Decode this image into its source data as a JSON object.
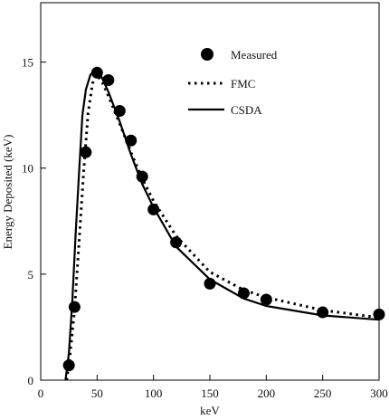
{
  "chart_data": {
    "type": "line",
    "xlabel": "keV",
    "ylabel": "Energy Deposited (keV)",
    "xlim": [
      0,
      300
    ],
    "ylim": [
      0,
      17.8
    ],
    "xticks": [
      0,
      50,
      100,
      150,
      200,
      250,
      300
    ],
    "yticks": [
      0,
      5,
      10,
      15
    ],
    "grid": false,
    "legend_position": "top-right",
    "series": [
      {
        "name": "Measured",
        "style": "markers",
        "color": "#000000",
        "x": [
          25,
          30,
          40,
          50,
          60,
          70,
          80,
          90,
          100,
          120,
          150,
          180,
          200,
          250,
          300
        ],
        "y": [
          0.7,
          3.45,
          10.75,
          14.5,
          14.15,
          12.7,
          11.3,
          9.6,
          8.05,
          6.5,
          4.55,
          4.1,
          3.8,
          3.2,
          3.1
        ]
      },
      {
        "name": "FMC",
        "style": "dotted",
        "color": "#000000",
        "x": [
          23,
          26,
          30,
          34,
          38,
          42,
          46,
          50,
          55,
          60,
          70,
          80,
          90,
          100,
          120,
          150,
          180,
          200,
          250,
          300
        ],
        "y": [
          0.0,
          1.2,
          3.3,
          6.5,
          9.8,
          12.6,
          14.0,
          14.4,
          14.0,
          13.4,
          12.1,
          10.75,
          9.5,
          8.45,
          6.8,
          5.1,
          4.25,
          3.9,
          3.3,
          2.95
        ]
      },
      {
        "name": "CSDA",
        "style": "solid",
        "color": "#000000",
        "x": [
          22,
          25,
          28,
          31,
          34,
          37,
          40,
          44,
          47,
          50,
          54,
          60,
          70,
          80,
          90,
          100,
          120,
          150,
          180,
          200,
          250,
          300
        ],
        "y": [
          0.0,
          1.3,
          3.7,
          6.9,
          9.8,
          12.5,
          13.7,
          14.4,
          14.55,
          14.55,
          14.3,
          13.6,
          12.2,
          10.65,
          9.25,
          8.15,
          6.3,
          4.75,
          3.85,
          3.5,
          3.05,
          2.85
        ]
      }
    ]
  }
}
